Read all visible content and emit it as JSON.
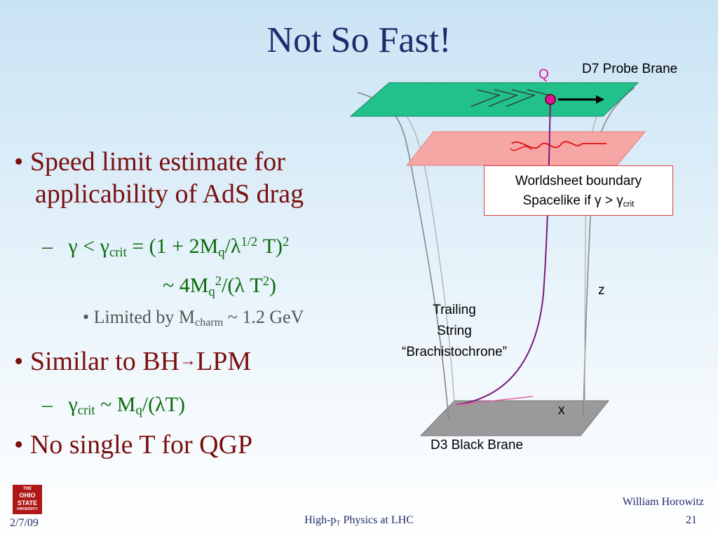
{
  "title": "Not So Fast!",
  "bullets": {
    "b1_line1": "Speed limit estimate for",
    "b1_line2": "applicability of AdS drag",
    "sub1_dash": "–",
    "sub1_parts": {
      "g": "γ",
      "lt": " < ",
      "gcrit": "γ",
      "crit": "crit",
      "eq": " = (1 + 2M",
      "q": "q",
      "slash": "/",
      "lambda": "λ",
      "half": "1/2",
      "t": " T)",
      "two": "2"
    },
    "sub1_line2": {
      "a": "~ 4M",
      "q": "q",
      "two": "2",
      "b": "/(",
      "lambda": "λ",
      "c": " T",
      "two2": "2",
      "d": ")"
    },
    "subsub1": {
      "a": "Limited by M",
      "charm": "charm",
      "b": " ~ 1.2 GeV"
    },
    "b2": {
      "a": "Similar to BH",
      "arrow": "→",
      "b": "LPM"
    },
    "sub2": {
      "dash": "–",
      "g": "γ",
      "crit": "crit",
      "a": " ~ M",
      "q": "q",
      "b": "/(",
      "lambda": "λ",
      "c": "T)"
    },
    "b3": "No single T for QGP"
  },
  "diagram": {
    "q_label": "Q",
    "d7_label": "D7 Probe Brane",
    "callout_line1": "Worldsheet boundary",
    "callout_line2a": "Spacelike  if  ",
    "callout_g1": "γ",
    "callout_gt": " > ",
    "callout_g2": "γ",
    "callout_crit": "crit",
    "z_label": "z",
    "trailing1": "Trailing",
    "trailing2": "String",
    "trailing3": "“Brachistochrone”",
    "x_label": "x",
    "d3_label": "D3 Black Brane",
    "colors": {
      "d7": "#22c08a",
      "slice": "#f7a6a6",
      "d3": "#9a9a9a",
      "string": "#7a1a7a",
      "q": "#e0109e"
    }
  },
  "footer": {
    "logo_l1": "THE",
    "logo_l2": "OHIO",
    "logo_l3": "STATE",
    "logo_l4": "UNIVERSITY",
    "date": "2/7/09",
    "center_a": "High-p",
    "center_t": "T",
    "center_b": " Physics at LHC",
    "author": "William Horowitz",
    "page": "21"
  }
}
